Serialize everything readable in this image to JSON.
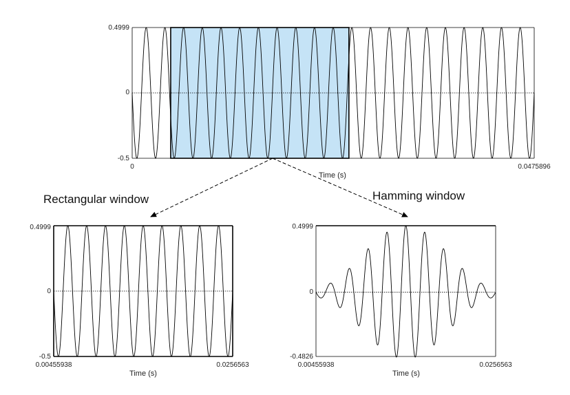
{
  "chart_data": [
    {
      "type": "line",
      "panel": "full-signal",
      "series": [
        {
          "values_description": "pure sine wave, ~21.5 cycles over the span",
          "amplitude": 0.4999,
          "cycles": 21.5
        }
      ],
      "x_range": [
        0,
        0.0475896
      ],
      "ylim": [
        -0.5,
        0.4999
      ],
      "x_tick_labels": [
        "0",
        "0.0475896"
      ],
      "y_tick_labels": [
        "0.4999",
        "0",
        "-0.5"
      ],
      "xlabel": "Time (s)",
      "highlight_region": [
        0.00455938,
        0.0256563
      ],
      "highlight_color": "#c5e3f6",
      "zero_line": "dotted"
    },
    {
      "type": "line",
      "panel": "rectangular",
      "caption": "Rectangular window",
      "series": [
        {
          "window": "rectangular",
          "amplitude": 0.4999,
          "cycles": 9.5
        }
      ],
      "x_range": [
        0.00455938,
        0.0256563
      ],
      "ylim": [
        -0.5,
        0.4999
      ],
      "x_tick_labels": [
        "0.00455938",
        "0.0256563"
      ],
      "y_tick_labels": [
        "0.4999",
        "0",
        "-0.5"
      ],
      "xlabel": "Time (s)",
      "zero_line": "dotted"
    },
    {
      "type": "line",
      "panel": "hamming",
      "caption": "Hamming window",
      "series": [
        {
          "window": "hamming",
          "amplitude": 0.4999,
          "cycles": 9.5
        }
      ],
      "x_range": [
        0.00455938,
        0.0256563
      ],
      "ylim": [
        -0.4826,
        0.4999
      ],
      "x_tick_labels": [
        "0.00455938",
        "0.0256563"
      ],
      "y_tick_labels": [
        "0.4999",
        "0",
        "-0.4826"
      ],
      "xlabel": "Time (s)",
      "zero_line": "dotted"
    }
  ]
}
